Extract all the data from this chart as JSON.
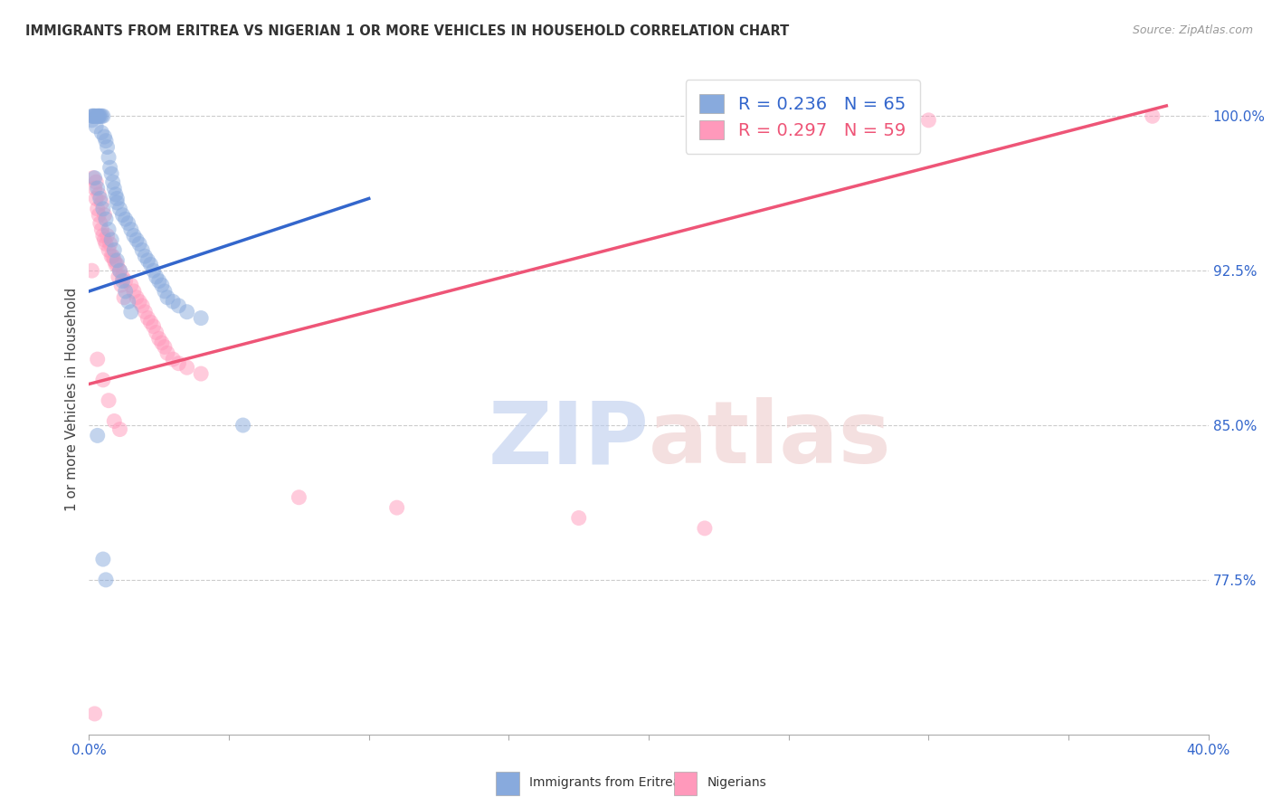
{
  "title": "IMMIGRANTS FROM ERITREA VS NIGERIAN 1 OR MORE VEHICLES IN HOUSEHOLD CORRELATION CHART",
  "source": "Source: ZipAtlas.com",
  "ylabel_label": "1 or more Vehicles in Household",
  "ytick_values": [
    77.5,
    85.0,
    92.5,
    100.0
  ],
  "xmin": 0.0,
  "xmax": 40.0,
  "ymin": 70.0,
  "ymax": 102.5,
  "legend_label1": "Immigrants from Eritrea",
  "legend_label2": "Nigerians",
  "r1": 0.236,
  "n1": 65,
  "r2": 0.297,
  "n2": 59,
  "color1": "#88AADD",
  "color2": "#FF99BB",
  "trendline1_color": "#3366CC",
  "trendline2_color": "#EE5577",
  "watermark_zip_color": "#BBCCEE",
  "watermark_atlas_color": "#EECCCC",
  "blue_x": [
    0.1,
    0.1,
    0.15,
    0.2,
    0.25,
    0.3,
    0.35,
    0.4,
    0.45,
    0.5,
    0.55,
    0.6,
    0.65,
    0.7,
    0.75,
    0.8,
    0.85,
    0.9,
    0.95,
    1.0,
    1.0,
    1.1,
    1.2,
    1.3,
    1.4,
    1.5,
    1.6,
    1.7,
    1.8,
    1.9,
    2.0,
    2.1,
    2.2,
    2.3,
    2.4,
    2.5,
    2.6,
    2.7,
    2.8,
    3.0,
    3.2,
    3.5,
    4.0,
    0.2,
    0.3,
    0.4,
    0.5,
    0.6,
    0.7,
    0.8,
    0.9,
    1.0,
    1.1,
    1.2,
    1.3,
    1.4,
    1.5,
    0.15,
    0.25,
    0.35,
    0.45,
    5.5,
    0.3,
    0.5,
    0.6
  ],
  "blue_y": [
    100.0,
    99.8,
    100.0,
    100.0,
    99.5,
    100.0,
    100.0,
    100.0,
    99.2,
    100.0,
    99.0,
    98.8,
    98.5,
    98.0,
    97.5,
    97.2,
    96.8,
    96.5,
    96.2,
    96.0,
    95.8,
    95.5,
    95.2,
    95.0,
    94.8,
    94.5,
    94.2,
    94.0,
    93.8,
    93.5,
    93.2,
    93.0,
    92.8,
    92.5,
    92.2,
    92.0,
    91.8,
    91.5,
    91.2,
    91.0,
    90.8,
    90.5,
    90.2,
    97.0,
    96.5,
    96.0,
    95.5,
    95.0,
    94.5,
    94.0,
    93.5,
    93.0,
    92.5,
    92.0,
    91.5,
    91.0,
    90.5,
    100.0,
    100.0,
    100.0,
    100.0,
    85.0,
    84.5,
    78.5,
    77.5
  ],
  "pink_x": [
    0.1,
    0.15,
    0.2,
    0.25,
    0.3,
    0.35,
    0.4,
    0.45,
    0.5,
    0.55,
    0.6,
    0.7,
    0.8,
    0.9,
    1.0,
    1.1,
    1.2,
    1.3,
    1.5,
    1.6,
    1.7,
    1.8,
    1.9,
    2.0,
    2.1,
    2.2,
    2.3,
    2.4,
    2.5,
    2.6,
    2.7,
    2.8,
    3.0,
    3.2,
    3.5,
    4.0,
    0.25,
    0.35,
    0.45,
    0.55,
    0.65,
    0.75,
    0.85,
    0.95,
    1.05,
    1.15,
    1.25,
    0.3,
    0.5,
    0.7,
    0.9,
    1.1,
    7.5,
    11.0,
    17.5,
    22.0,
    30.0,
    38.0,
    0.2
  ],
  "pink_y": [
    92.5,
    97.0,
    96.5,
    96.0,
    95.5,
    95.2,
    94.8,
    94.5,
    94.2,
    94.0,
    93.8,
    93.5,
    93.2,
    93.0,
    92.8,
    92.5,
    92.2,
    92.0,
    91.8,
    91.5,
    91.2,
    91.0,
    90.8,
    90.5,
    90.2,
    90.0,
    89.8,
    89.5,
    89.2,
    89.0,
    88.8,
    88.5,
    88.2,
    88.0,
    87.8,
    87.5,
    96.8,
    96.2,
    95.8,
    95.2,
    94.2,
    93.8,
    93.2,
    92.8,
    92.2,
    91.8,
    91.2,
    88.2,
    87.2,
    86.2,
    85.2,
    84.8,
    81.5,
    81.0,
    80.5,
    80.0,
    99.8,
    100.0,
    71.0
  ],
  "trendline1_x0": 0.0,
  "trendline1_x1": 10.0,
  "trendline1_y0": 91.5,
  "trendline1_y1": 96.0,
  "trendline2_x0": 0.0,
  "trendline2_x1": 38.5,
  "trendline2_y0": 87.0,
  "trendline2_y1": 100.5
}
